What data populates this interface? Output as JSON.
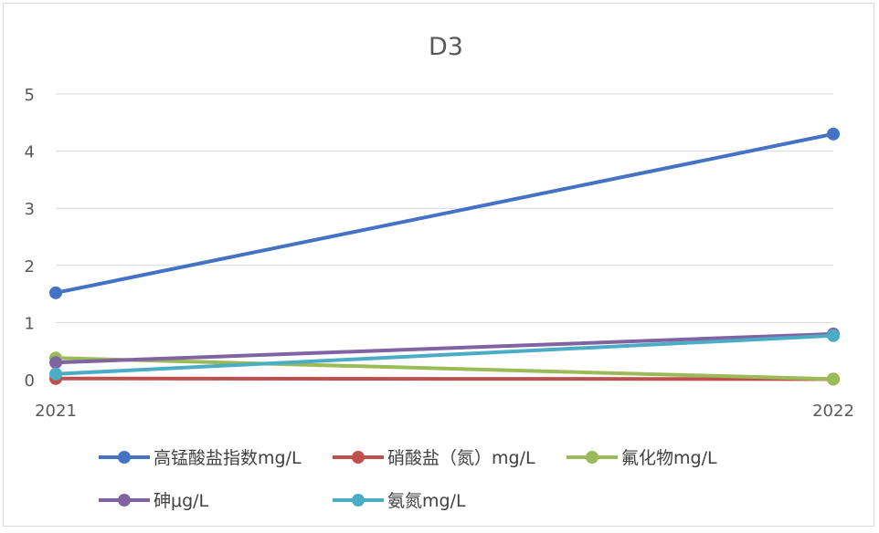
{
  "chart_data": {
    "type": "line",
    "title": "D3",
    "categories": [
      "2021",
      "2022"
    ],
    "ylim": [
      0,
      5
    ],
    "yticks": [
      "0",
      "1",
      "2",
      "3",
      "4",
      "5"
    ],
    "grid": true,
    "legend_position": "bottom",
    "series": [
      {
        "name": "高锰酸盐指数mg/L",
        "color": "#4472C4",
        "values": [
          1.52,
          4.3
        ]
      },
      {
        "name": "硝酸盐（氮）mg/L",
        "color": "#C0504D",
        "values": [
          0.02,
          0.01
        ]
      },
      {
        "name": "氟化物mg/L",
        "color": "#9BBB59",
        "values": [
          0.38,
          0.01
        ]
      },
      {
        "name": "砷μg/L",
        "color": "#8064A2",
        "values": [
          0.3,
          0.8
        ]
      },
      {
        "name": "氨氮mg/L",
        "color": "#4BACC6",
        "values": [
          0.1,
          0.77
        ]
      }
    ]
  }
}
